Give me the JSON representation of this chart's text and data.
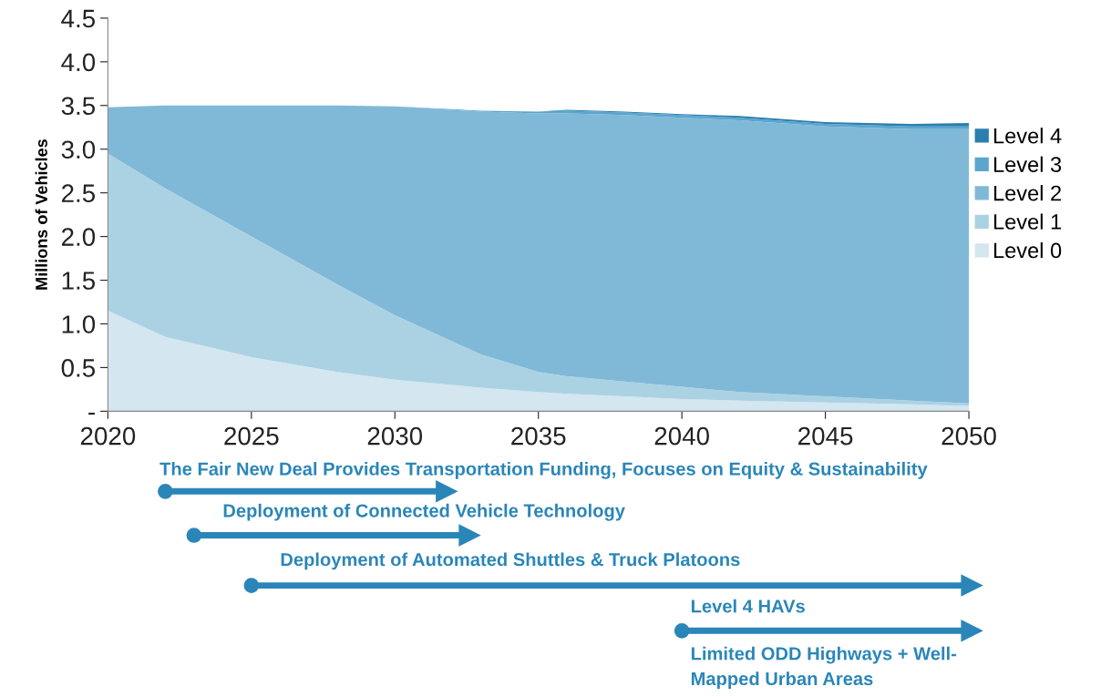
{
  "chart_data": {
    "type": "area",
    "stacked": true,
    "ylabel": "Millions of Vehicles",
    "x": [
      2020,
      2022,
      2025,
      2028,
      2030,
      2033,
      2035,
      2036,
      2038,
      2040,
      2042,
      2045,
      2048,
      2050
    ],
    "series": [
      {
        "name": "Level 0",
        "color": "#d4e6f0",
        "values": [
          1.15,
          0.85,
          0.62,
          0.45,
          0.36,
          0.27,
          0.22,
          0.2,
          0.17,
          0.14,
          0.12,
          0.1,
          0.08,
          0.06
        ]
      },
      {
        "name": "Level 1",
        "color": "#abd2e3",
        "values": [
          1.8,
          1.7,
          1.38,
          1.0,
          0.74,
          0.38,
          0.23,
          0.2,
          0.17,
          0.14,
          0.1,
          0.07,
          0.04,
          0.03
        ]
      },
      {
        "name": "Level 2",
        "color": "#80b9d7",
        "values": [
          0.53,
          0.95,
          1.5,
          2.05,
          2.39,
          2.78,
          2.96,
          3.01,
          3.05,
          3.08,
          3.11,
          3.09,
          3.11,
          3.14
        ]
      },
      {
        "name": "Level 3",
        "color": "#5aa6cf",
        "values": [
          0,
          0,
          0,
          0,
          0,
          0.01,
          0.02,
          0.03,
          0.03,
          0.03,
          0.03,
          0.03,
          0.03,
          0.03
        ]
      },
      {
        "name": "Level 4",
        "color": "#2a7fb0",
        "values": [
          0,
          0,
          0,
          0,
          0,
          0,
          0,
          0.01,
          0.01,
          0.01,
          0.02,
          0.02,
          0.03,
          0.04
        ]
      }
    ],
    "xlim": [
      2020,
      2050
    ],
    "xticks": [
      2020,
      2025,
      2030,
      2035,
      2040,
      2045,
      2050
    ],
    "ylim": [
      0,
      4.5
    ],
    "yticks": [
      {
        "value": 0,
        "label": "-"
      },
      {
        "value": 0.5,
        "label": "0.5"
      },
      {
        "value": 1.0,
        "label": "1.0"
      },
      {
        "value": 1.5,
        "label": "1.5"
      },
      {
        "value": 2.0,
        "label": "2.0"
      },
      {
        "value": 2.5,
        "label": "2.5"
      },
      {
        "value": 3.0,
        "label": "3.0"
      },
      {
        "value": 3.5,
        "label": "3.5"
      },
      {
        "value": 4.0,
        "label": "4.0"
      },
      {
        "value": 4.5,
        "label": "4.5"
      }
    ],
    "grid": false,
    "legend": "right",
    "annotations": [
      "The Fair New Deal Provides Transportation Funding, Focuses on Equity & Sustainability",
      "Deployment of Connected Vehicle Technology",
      "Deployment of Automated Shuttles & Truck Platoons",
      "Level 4 HAVs",
      "Limited ODD Highways + Well-\nMapped Urban Areas"
    ]
  }
}
